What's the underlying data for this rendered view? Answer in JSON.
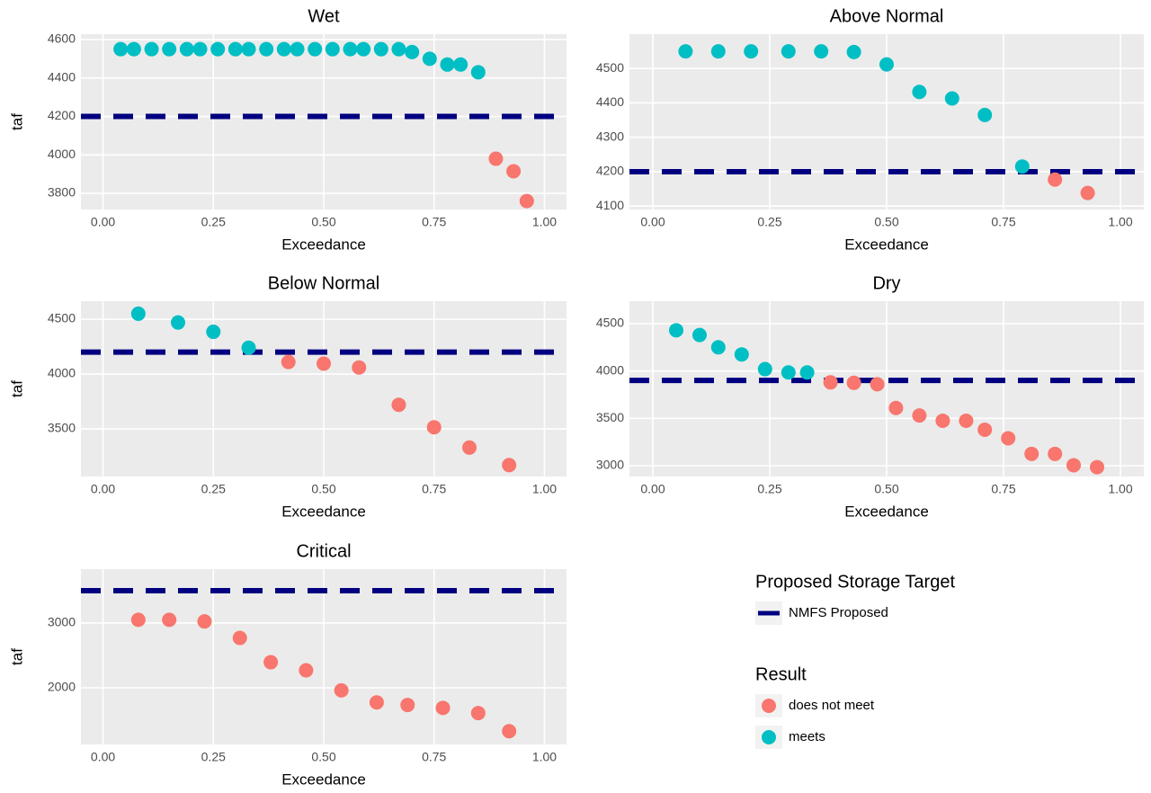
{
  "chart_data": [
    {
      "type": "scatter",
      "title": "Wet",
      "xlabel": "Exceedance",
      "ylabel": "taf",
      "xlim": [
        -0.05,
        1.05
      ],
      "xticks": [
        {
          "value": 0,
          "label": "0.00"
        },
        {
          "value": 0.25,
          "label": "0.25"
        },
        {
          "value": 0.5,
          "label": "0.50"
        },
        {
          "value": 0.75,
          "label": "0.75"
        },
        {
          "value": 1,
          "label": "1.00"
        }
      ],
      "ylim": [
        3716,
        4628
      ],
      "yticks": [
        3800,
        4000,
        4200,
        4400,
        4600
      ],
      "grid": true,
      "hline": {
        "name": "NMFS Proposed",
        "value": 4200,
        "color": "#000080"
      },
      "series": [
        {
          "name": "does not meet",
          "color": "#f8766d",
          "x": [
            0.89,
            0.93,
            0.96
          ],
          "values": [
            3980,
            3915,
            3760
          ]
        },
        {
          "name": "meets",
          "color": "#00bfc4",
          "x": [
            0.04,
            0.07,
            0.11,
            0.15,
            0.19,
            0.22,
            0.26,
            0.3,
            0.33,
            0.37,
            0.41,
            0.44,
            0.48,
            0.52,
            0.56,
            0.59,
            0.63,
            0.67,
            0.7,
            0.74,
            0.78,
            0.81,
            0.85
          ],
          "values": [
            4550,
            4550,
            4550,
            4550,
            4550,
            4550,
            4550,
            4550,
            4550,
            4550,
            4550,
            4550,
            4550,
            4550,
            4550,
            4550,
            4550,
            4550,
            4535,
            4500,
            4470,
            4470,
            4430
          ]
        }
      ]
    },
    {
      "type": "scatter",
      "title": "Above Normal",
      "xlabel": "Exceedance",
      "xlim": [
        -0.05,
        1.05
      ],
      "xticks": [
        {
          "value": 0,
          "label": "0.00"
        },
        {
          "value": 0.25,
          "label": "0.25"
        },
        {
          "value": 0.5,
          "label": "0.50"
        },
        {
          "value": 0.75,
          "label": "0.75"
        },
        {
          "value": 1,
          "label": "1.00"
        }
      ],
      "ylim": [
        4090,
        4600
      ],
      "yticks": [
        4100,
        4200,
        4300,
        4400,
        4500
      ],
      "grid": true,
      "hline": {
        "name": "NMFS Proposed",
        "value": 4200,
        "color": "#000080"
      },
      "series": [
        {
          "name": "does not meet",
          "color": "#f8766d",
          "x": [
            0.86,
            0.93
          ],
          "values": [
            4177,
            4138
          ]
        },
        {
          "name": "meets",
          "color": "#00bfc4",
          "x": [
            0.07,
            0.14,
            0.21,
            0.29,
            0.36,
            0.43,
            0.5,
            0.57,
            0.64,
            0.71,
            0.79
          ],
          "values": [
            4550,
            4550,
            4550,
            4550,
            4550,
            4548,
            4512,
            4432,
            4413,
            4365,
            4215
          ]
        }
      ]
    },
    {
      "type": "scatter",
      "title": "Below Normal",
      "xlabel": "Exceedance",
      "ylabel": "taf",
      "xlim": [
        -0.05,
        1.05
      ],
      "xticks": [
        {
          "value": 0,
          "label": "0.00"
        },
        {
          "value": 0.25,
          "label": "0.25"
        },
        {
          "value": 0.5,
          "label": "0.50"
        },
        {
          "value": 0.75,
          "label": "0.75"
        },
        {
          "value": 1,
          "label": "1.00"
        }
      ],
      "ylim": [
        3066,
        4664
      ],
      "yticks": [
        3500,
        4000,
        4500
      ],
      "grid": true,
      "hline": {
        "name": "NMFS Proposed",
        "value": 4200,
        "color": "#000080"
      },
      "series": [
        {
          "name": "does not meet",
          "color": "#f8766d",
          "x": [
            0.42,
            0.5,
            0.58,
            0.67,
            0.75,
            0.83,
            0.92
          ],
          "values": [
            4110,
            4095,
            4060,
            3720,
            3515,
            3330,
            3170
          ]
        },
        {
          "name": "meets",
          "color": "#00bfc4",
          "x": [
            0.08,
            0.17,
            0.25,
            0.33
          ],
          "values": [
            4550,
            4470,
            4385,
            4240
          ]
        }
      ]
    },
    {
      "type": "scatter",
      "title": "Dry",
      "xlabel": "Exceedance",
      "xlim": [
        -0.05,
        1.05
      ],
      "xticks": [
        {
          "value": 0,
          "label": "0.00"
        },
        {
          "value": 0.25,
          "label": "0.25"
        },
        {
          "value": 0.5,
          "label": "0.50"
        },
        {
          "value": 0.75,
          "label": "0.75"
        },
        {
          "value": 1,
          "label": "1.00"
        }
      ],
      "ylim": [
        2886,
        4737
      ],
      "yticks": [
        3000,
        3500,
        4000,
        4500
      ],
      "grid": true,
      "hline": {
        "name": "NMFS Proposed",
        "value": 3900,
        "color": "#000080"
      },
      "series": [
        {
          "name": "does not meet",
          "color": "#f8766d",
          "x": [
            0.38,
            0.43,
            0.48,
            0.52,
            0.57,
            0.62,
            0.67,
            0.71,
            0.76,
            0.81,
            0.86,
            0.9,
            0.95
          ],
          "values": [
            3880,
            3875,
            3860,
            3610,
            3530,
            3475,
            3475,
            3380,
            3290,
            3125,
            3125,
            3005,
            2985
          ]
        },
        {
          "name": "meets",
          "color": "#00bfc4",
          "x": [
            0.05,
            0.1,
            0.14,
            0.19,
            0.24,
            0.29,
            0.33
          ],
          "values": [
            4430,
            4380,
            4250,
            4175,
            4020,
            3985,
            3985
          ]
        }
      ]
    },
    {
      "type": "scatter",
      "title": "Critical",
      "xlabel": "Exceedance",
      "ylabel": "taf",
      "xlim": [
        -0.05,
        1.05
      ],
      "xticks": [
        {
          "value": 0,
          "label": "0.00"
        },
        {
          "value": 0.25,
          "label": "0.25"
        },
        {
          "value": 0.5,
          "label": "0.50"
        },
        {
          "value": 0.75,
          "label": "0.75"
        },
        {
          "value": 1,
          "label": "1.00"
        }
      ],
      "ylim": [
        1125,
        3833
      ],
      "yticks": [
        2000,
        3000
      ],
      "grid": true,
      "hline": {
        "name": "NMFS Proposed",
        "value": 3500,
        "color": "#000080"
      },
      "series": [
        {
          "name": "does not meet",
          "color": "#f8766d",
          "x": [
            0.08,
            0.15,
            0.23,
            0.31,
            0.38,
            0.46,
            0.54,
            0.62,
            0.69,
            0.77,
            0.85,
            0.92
          ],
          "values": [
            3050,
            3050,
            3025,
            2770,
            2395,
            2270,
            1960,
            1775,
            1735,
            1690,
            1610,
            1330
          ]
        }
      ]
    }
  ],
  "legend": {
    "line_title": "Proposed Storage Target",
    "point_title": "Result"
  }
}
